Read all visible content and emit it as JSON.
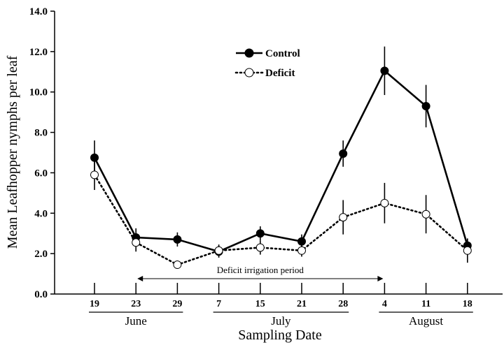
{
  "chart_data": {
    "type": "line",
    "xlabel": "Sampling Date",
    "ylabel": "Mean Leafhopper nymphs per leaf",
    "ylim": [
      0,
      14
    ],
    "yticks": [
      "0.0",
      "2.0",
      "4.0",
      "6.0",
      "8.0",
      "10.0",
      "12.0",
      "14.0"
    ],
    "categories": [
      "19",
      "23",
      "29",
      "7",
      "15",
      "21",
      "28",
      "4",
      "11",
      "18"
    ],
    "months": [
      {
        "label": "June",
        "from": 0,
        "to": 2
      },
      {
        "label": "July",
        "from": 3,
        "to": 6
      },
      {
        "label": "August",
        "from": 7,
        "to": 9
      }
    ],
    "series": [
      {
        "name": "Control",
        "marker": "filled-circle",
        "line": "solid",
        "values": [
          6.75,
          2.8,
          2.7,
          2.1,
          3.0,
          2.6,
          6.95,
          11.05,
          9.3,
          2.4
        ],
        "errors": [
          0.85,
          0.45,
          0.35,
          0.3,
          0.35,
          0.35,
          0.65,
          1.2,
          1.05,
          0.35
        ]
      },
      {
        "name": "Deficit",
        "marker": "open-circle",
        "line": "dotted",
        "values": [
          5.9,
          2.55,
          1.45,
          2.15,
          2.3,
          2.15,
          3.8,
          4.5,
          3.95,
          2.15
        ],
        "errors": [
          0.75,
          0.45,
          0.15,
          0.3,
          0.35,
          0.3,
          0.85,
          1.0,
          0.95,
          0.6
        ]
      }
    ],
    "annotation": {
      "text": "Deficit irrigation period",
      "from_category": "23",
      "to_category": "4"
    },
    "legend": "top-center",
    "grid": false
  }
}
